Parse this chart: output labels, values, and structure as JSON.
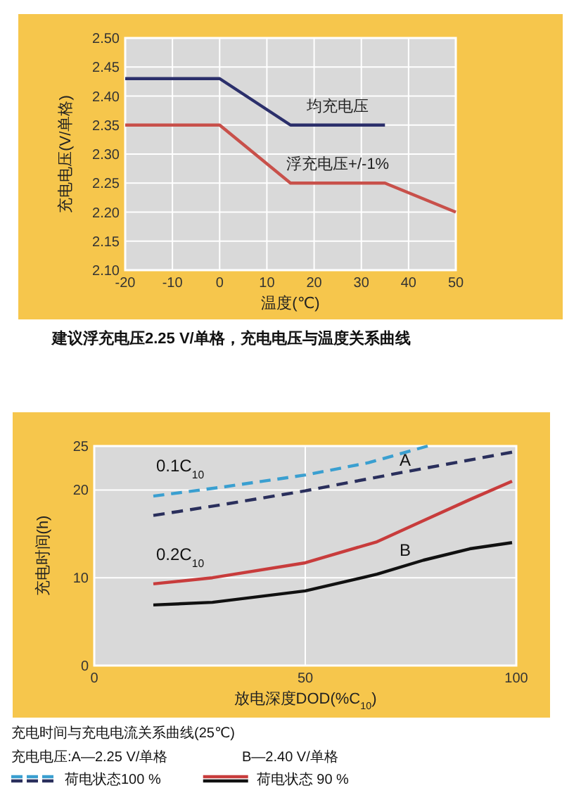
{
  "chart_data": [
    {
      "type": "line",
      "xlabel": "温度(℃)",
      "ylabel": "充电电压(V/单格)",
      "xlim": [
        -20,
        50
      ],
      "ylim": [
        2.1,
        2.5
      ],
      "xticks": [
        -20,
        -10,
        0,
        10,
        20,
        30,
        40,
        50
      ],
      "yticks": [
        {
          "value": 2.1,
          "label": "2.10"
        },
        {
          "value": 2.15,
          "label": "2.15"
        },
        {
          "value": 2.2,
          "label": "2.20"
        },
        {
          "value": 2.25,
          "label": "2.25"
        },
        {
          "value": 2.3,
          "label": "2.30"
        },
        {
          "value": 2.35,
          "label": "2.35"
        },
        {
          "value": 2.4,
          "label": "2.40"
        },
        {
          "value": 2.45,
          "label": "2.45"
        },
        {
          "value": 2.5,
          "label": "2.50"
        }
      ],
      "grid": true,
      "line_style": "solid",
      "series": [
        {
          "name": "均充电压",
          "color": "#2b2f6b",
          "x": [
            -20,
            0,
            15,
            35
          ],
          "values": [
            2.43,
            2.43,
            2.35,
            2.35
          ]
        },
        {
          "name": "浮充电压+/-1%",
          "color": "#c8504a",
          "x": [
            -20,
            0,
            15,
            35,
            50
          ],
          "values": [
            2.35,
            2.35,
            2.25,
            2.25,
            2.2
          ]
        }
      ],
      "annotations": [
        "建议浮充电压2.25 V/单格，充电电压与温度关系曲线"
      ]
    },
    {
      "type": "line",
      "xlabel": "放电深度DOD(%C$_{10}$)",
      "ylabel": "充电时间(h)",
      "xlim": [
        0,
        100
      ],
      "ylim": [
        0,
        25
      ],
      "xticks": [
        0,
        50,
        100
      ],
      "yticks": [
        0,
        10,
        20,
        25
      ],
      "grid": true,
      "legend": "bottom",
      "series": [
        {
          "name": "荷电状态100 %",
          "color": "#3a9fd0",
          "line_style": "dashed",
          "x": [
            14,
            30,
            50,
            65,
            79
          ],
          "values": [
            19.3,
            20.3,
            21.7,
            23.1,
            25
          ]
        },
        {
          "color": "#2a2f5c",
          "line_style": "dashed",
          "x": [
            14,
            30,
            50,
            73,
            99
          ],
          "values": [
            17.1,
            18.3,
            19.9,
            22.0,
            24.3
          ]
        },
        {
          "name": "荷电状态 90 %",
          "color": "#c83c3c",
          "line_style": "solid",
          "x": [
            14,
            28,
            50,
            67,
            78,
            89,
            99
          ],
          "values": [
            9.3,
            10.0,
            11.7,
            14.1,
            16.5,
            18.9,
            21.0
          ]
        },
        {
          "color": "#111111",
          "line_style": "solid",
          "x": [
            14,
            28,
            50,
            67,
            78,
            89,
            99
          ],
          "values": [
            6.9,
            7.2,
            8.5,
            10.4,
            12.0,
            13.3,
            14.0
          ]
        }
      ],
      "annotations": [
        "0.1C$_{10}$",
        "0.2C$_{10}$",
        "A",
        "B",
        "充电时间与充电电流关系曲线(25℃)",
        "充电电压:A—2.25 V/单格",
        "B—2.40 V/单格"
      ]
    }
  ]
}
